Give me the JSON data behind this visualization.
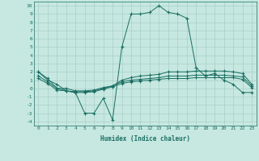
{
  "title": "",
  "xlabel": "Humidex (Indice chaleur)",
  "ylabel": "",
  "bg_color": "#c6e8e0",
  "grid_color": "#a8cfc8",
  "line_color": "#1a6e62",
  "x": [
    0,
    1,
    2,
    3,
    4,
    5,
    6,
    7,
    8,
    9,
    10,
    11,
    12,
    13,
    14,
    15,
    16,
    17,
    18,
    19,
    20,
    21,
    22,
    23
  ],
  "line1": [
    2,
    1,
    0.5,
    -0.3,
    -0.5,
    -3,
    -3,
    -1.2,
    -3.8,
    5,
    9,
    9,
    9.2,
    10,
    9.2,
    9,
    8.5,
    2.5,
    1.5,
    1.8,
    1,
    0.5,
    -0.5,
    -0.5
  ],
  "line2": [
    2,
    1.2,
    0,
    -0.3,
    -0.4,
    -0.4,
    -0.3,
    0,
    0.3,
    1.0,
    1.3,
    1.5,
    1.6,
    1.7,
    2.0,
    2.0,
    2.0,
    2.1,
    2.1,
    2.1,
    2.1,
    2.0,
    1.8,
    0.5
  ],
  "line3": [
    1.5,
    0.8,
    0,
    0,
    -0.3,
    -0.3,
    -0.2,
    0.1,
    0.3,
    0.8,
    1.0,
    1.1,
    1.2,
    1.3,
    1.5,
    1.5,
    1.5,
    1.6,
    1.6,
    1.6,
    1.6,
    1.5,
    1.4,
    0.3
  ],
  "line4": [
    1.2,
    0.6,
    -0.2,
    -0.3,
    -0.5,
    -0.5,
    -0.4,
    -0.1,
    0.2,
    0.6,
    0.8,
    0.9,
    1.0,
    1.1,
    1.2,
    1.2,
    1.2,
    1.3,
    1.3,
    1.3,
    1.3,
    1.3,
    1.1,
    0.1
  ],
  "ylim": [
    -4.5,
    10.5
  ],
  "xlim": [
    -0.5,
    23.5
  ],
  "yticks": [
    10,
    9,
    8,
    7,
    6,
    5,
    4,
    3,
    2,
    1,
    0,
    -1,
    -2,
    -3,
    -4
  ],
  "xticks": [
    0,
    1,
    2,
    3,
    4,
    5,
    6,
    7,
    8,
    9,
    10,
    11,
    12,
    13,
    14,
    15,
    16,
    17,
    18,
    19,
    20,
    21,
    22,
    23
  ]
}
